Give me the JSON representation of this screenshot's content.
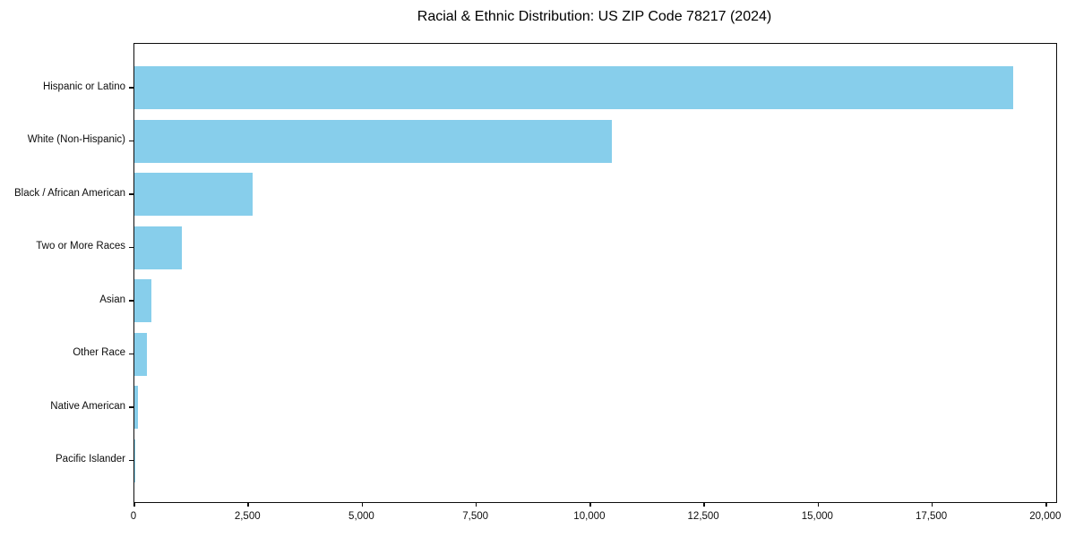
{
  "chart_data": {
    "type": "bar",
    "orientation": "horizontal",
    "title": "Racial & Ethnic Distribution: US ZIP Code 78217 (2024)",
    "categories": [
      "Hispanic or Latino",
      "White (Non-Hispanic)",
      "Black / African American",
      "Two or More Races",
      "Asian",
      "Other Race",
      "Native American",
      "Pacific Islander"
    ],
    "values": [
      19270,
      10470,
      2600,
      1050,
      370,
      270,
      80,
      20
    ],
    "xlabel": "",
    "ylabel": "",
    "xlim": [
      0,
      20220
    ],
    "x_ticks": [
      0,
      2500,
      5000,
      7500,
      10000,
      12500,
      15000,
      17500,
      20000
    ],
    "x_tick_labels": [
      "0",
      "2,500",
      "5,000",
      "7,500",
      "10,000",
      "12,500",
      "15,000",
      "17,500",
      "20,000"
    ],
    "bar_color": "#87CEEB",
    "grid": false,
    "legend": null
  }
}
